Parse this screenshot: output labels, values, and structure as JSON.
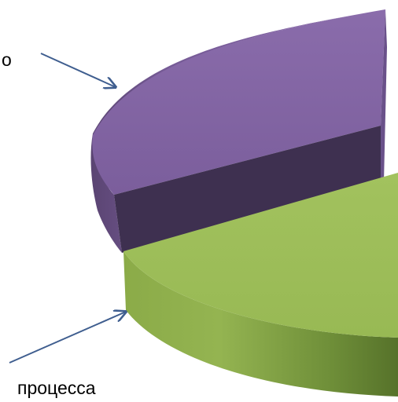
{
  "chart_data": {
    "type": "pie",
    "style": "3d-exploded",
    "slices": [
      {
        "label": "о",
        "color": "#8062a0",
        "dark": "#3e3050"
      },
      {
        "label": "процесса",
        "color": "#9bbb59",
        "dark": "#55732c"
      }
    ]
  }
}
